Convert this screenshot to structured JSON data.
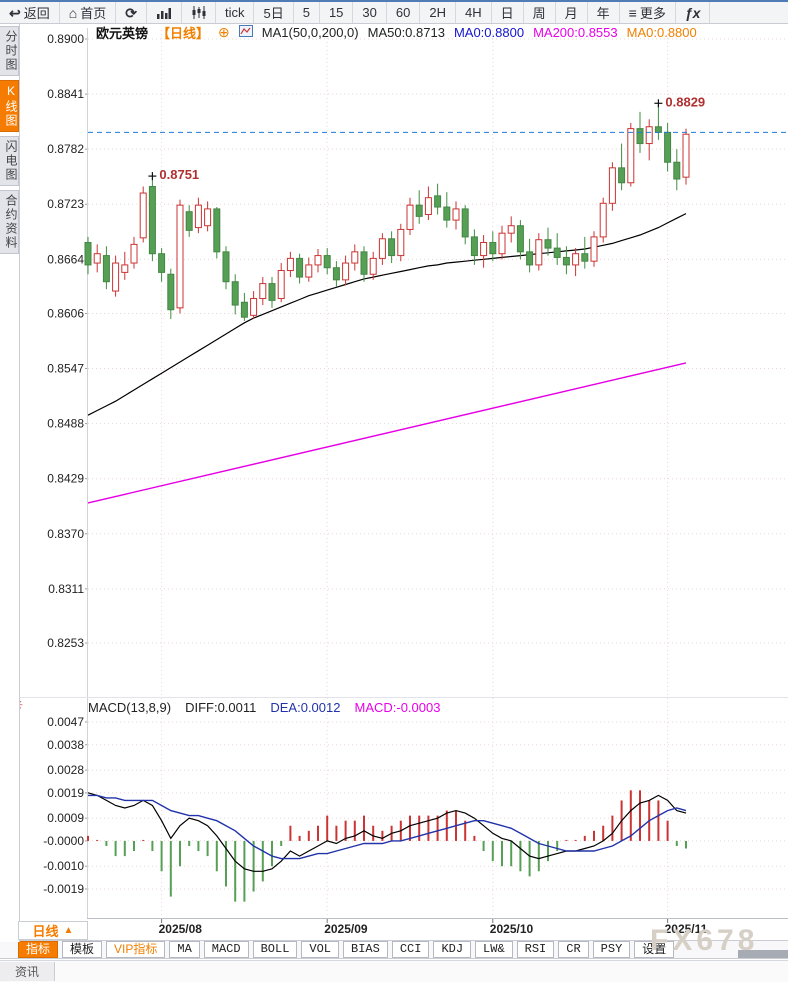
{
  "toolbar": {
    "items": [
      {
        "icon": "back",
        "label": "返回"
      },
      {
        "icon": "home",
        "label": "首页"
      },
      {
        "icon": "refresh",
        "label": ""
      },
      {
        "icon": "bar-chart",
        "label": ""
      },
      {
        "icon": "candlestick",
        "label": ""
      },
      {
        "icon": "",
        "label": "tick"
      },
      {
        "icon": "",
        "label": "5日"
      },
      {
        "icon": "",
        "label": "5"
      },
      {
        "icon": "",
        "label": "15"
      },
      {
        "icon": "",
        "label": "30"
      },
      {
        "icon": "",
        "label": "60"
      },
      {
        "icon": "",
        "label": "2H"
      },
      {
        "icon": "",
        "label": "4H"
      },
      {
        "icon": "",
        "label": "日"
      },
      {
        "icon": "",
        "label": "周"
      },
      {
        "icon": "",
        "label": "月"
      },
      {
        "icon": "",
        "label": "年"
      },
      {
        "icon": "menu",
        "label": "更多"
      },
      {
        "icon": "fx",
        "label": ""
      }
    ]
  },
  "sidebar": {
    "items": [
      {
        "label": "分时图",
        "active": false
      },
      {
        "label": "K线图",
        "active": true
      },
      {
        "label": "闪电图",
        "active": false
      },
      {
        "label": "合约资料",
        "active": false
      }
    ]
  },
  "chart_header": {
    "symbol": "欧元英镑",
    "period_tag": "【日线】",
    "plus": "⊕",
    "ma_param": "MA1(50,0,200,0)",
    "ma50": "MA50:0.8713",
    "ma0_blue": "MA0:0.8800",
    "ma200": "MA200:0.8553",
    "ma0_orange": "MA0:0.8800"
  },
  "macd_header": {
    "title": "MACD(13,8,9)",
    "diff": "DIFF:0.0011",
    "dea": "DEA:0.0012",
    "macd": "MACD:-0.0003"
  },
  "bottom": {
    "period_selector": "日线",
    "period_arrow": "▲",
    "tabs": [
      {
        "label": "指标",
        "style": "active"
      },
      {
        "label": "模板",
        "style": ""
      },
      {
        "label": "VIP指标",
        "style": "vip"
      },
      {
        "label": "MA",
        "style": "mono"
      },
      {
        "label": "MACD",
        "style": "mono"
      },
      {
        "label": "BOLL",
        "style": "mono"
      },
      {
        "label": "VOL",
        "style": "mono"
      },
      {
        "label": "BIAS",
        "style": "mono"
      },
      {
        "label": "CCI",
        "style": "mono"
      },
      {
        "label": "KDJ",
        "style": "mono"
      },
      {
        "label": "LW&",
        "style": "mono"
      },
      {
        "label": "RSI",
        "style": "mono"
      },
      {
        "label": "CR",
        "style": "mono"
      },
      {
        "label": "PSY",
        "style": "mono"
      },
      {
        "label": "设置",
        "style": ""
      }
    ],
    "news_tab": "资讯",
    "watermark": "FX678"
  },
  "colors": {
    "accent_orange": "#f57c00",
    "up_candle": "#cc3333",
    "down_candle": "#55a055",
    "ma50_line": "#000000",
    "ma200_line": "#e600e6",
    "diff_line": "#000000",
    "dea_line": "#2233aa",
    "dashed_price_line": "#1c7cd6",
    "annotation": "#b03030",
    "grid": "#e8d8d8"
  },
  "chart_data": {
    "type": "candlestick",
    "title": "欧元英镑 日线 (EUR/GBP daily with MA50/MA200 and MACD(13,8,9))",
    "price_axis_ticks": [
      "0.8900",
      "0.8841",
      "0.8782",
      "0.8723",
      "0.8664",
      "0.8606",
      "0.8547",
      "0.8488",
      "0.8429",
      "0.8370",
      "0.8311",
      "0.8253"
    ],
    "macd_axis_ticks": [
      "0.0047",
      "0.0038",
      "0.0028",
      "0.0019",
      "0.0009",
      "-0.0000",
      "-0.0010",
      "-0.0019"
    ],
    "x_ticks": [
      {
        "label": "2025/08",
        "index": 8
      },
      {
        "label": "2025/09",
        "index": 26
      },
      {
        "label": "2025/10",
        "index": 44
      },
      {
        "label": "2025/11",
        "index": 63
      }
    ],
    "price_range": {
      "top": 0.89,
      "bottom": 0.8253
    },
    "macd_range": {
      "top": 0.0047,
      "bottom": -0.0019
    },
    "current_price": 0.88,
    "annotations": [
      {
        "text": "0.8751",
        "index": 7,
        "price": 0.8751
      },
      {
        "text": "0.8829",
        "index": 62,
        "price": 0.8829
      }
    ],
    "candles": [
      [
        0.8682,
        0.8688,
        0.8648,
        0.8658
      ],
      [
        0.866,
        0.868,
        0.865,
        0.867
      ],
      [
        0.8668,
        0.8678,
        0.8632,
        0.864
      ],
      [
        0.863,
        0.8668,
        0.8624,
        0.866
      ],
      [
        0.865,
        0.8672,
        0.8642,
        0.8658
      ],
      [
        0.866,
        0.8688,
        0.8654,
        0.868
      ],
      [
        0.8687,
        0.8742,
        0.8682,
        0.8735
      ],
      [
        0.8742,
        0.8751,
        0.8662,
        0.867
      ],
      [
        0.867,
        0.8676,
        0.864,
        0.865
      ],
      [
        0.8648,
        0.8654,
        0.86,
        0.861
      ],
      [
        0.8612,
        0.8728,
        0.8606,
        0.8722
      ],
      [
        0.8715,
        0.8722,
        0.8688,
        0.8695
      ],
      [
        0.8698,
        0.873,
        0.8692,
        0.8722
      ],
      [
        0.87,
        0.8726,
        0.8694,
        0.8718
      ],
      [
        0.8718,
        0.872,
        0.8665,
        0.8672
      ],
      [
        0.8672,
        0.8678,
        0.8632,
        0.864
      ],
      [
        0.864,
        0.8648,
        0.8605,
        0.8615
      ],
      [
        0.8618,
        0.8628,
        0.8598,
        0.8602
      ],
      [
        0.8604,
        0.863,
        0.86,
        0.8622
      ],
      [
        0.8622,
        0.8645,
        0.8615,
        0.8638
      ],
      [
        0.8638,
        0.8645,
        0.8612,
        0.862
      ],
      [
        0.8622,
        0.866,
        0.8618,
        0.8652
      ],
      [
        0.8652,
        0.8672,
        0.8645,
        0.8665
      ],
      [
        0.8665,
        0.867,
        0.8638,
        0.8645
      ],
      [
        0.8645,
        0.8666,
        0.864,
        0.8658
      ],
      [
        0.8658,
        0.8675,
        0.865,
        0.8668
      ],
      [
        0.8668,
        0.8676,
        0.8648,
        0.8655
      ],
      [
        0.8655,
        0.8662,
        0.8635,
        0.8642
      ],
      [
        0.8642,
        0.8668,
        0.8636,
        0.866
      ],
      [
        0.866,
        0.868,
        0.8652,
        0.8672
      ],
      [
        0.8672,
        0.8678,
        0.864,
        0.8648
      ],
      [
        0.8648,
        0.8672,
        0.8642,
        0.8665
      ],
      [
        0.8665,
        0.8692,
        0.8658,
        0.8686
      ],
      [
        0.8686,
        0.8694,
        0.866,
        0.8668
      ],
      [
        0.8668,
        0.8702,
        0.8662,
        0.8696
      ],
      [
        0.8696,
        0.873,
        0.869,
        0.8722
      ],
      [
        0.8722,
        0.8738,
        0.8702,
        0.871
      ],
      [
        0.8712,
        0.8742,
        0.8706,
        0.873
      ],
      [
        0.8732,
        0.8745,
        0.8712,
        0.872
      ],
      [
        0.872,
        0.8736,
        0.8698,
        0.8706
      ],
      [
        0.8706,
        0.8726,
        0.8696,
        0.8718
      ],
      [
        0.8718,
        0.8722,
        0.868,
        0.8688
      ],
      [
        0.8688,
        0.8696,
        0.8658,
        0.8668
      ],
      [
        0.8668,
        0.869,
        0.8655,
        0.8682
      ],
      [
        0.8682,
        0.8694,
        0.8662,
        0.867
      ],
      [
        0.867,
        0.87,
        0.8664,
        0.8692
      ],
      [
        0.8692,
        0.871,
        0.8682,
        0.87
      ],
      [
        0.87,
        0.8706,
        0.8664,
        0.8672
      ],
      [
        0.8672,
        0.8686,
        0.865,
        0.8658
      ],
      [
        0.8658,
        0.8692,
        0.8652,
        0.8685
      ],
      [
        0.8685,
        0.8698,
        0.8668,
        0.8676
      ],
      [
        0.8676,
        0.8692,
        0.8658,
        0.8666
      ],
      [
        0.8666,
        0.8678,
        0.8648,
        0.8658
      ],
      [
        0.8658,
        0.8676,
        0.8646,
        0.867
      ],
      [
        0.867,
        0.8688,
        0.8654,
        0.8662
      ],
      [
        0.8662,
        0.8694,
        0.8656,
        0.8688
      ],
      [
        0.8688,
        0.873,
        0.8682,
        0.8724
      ],
      [
        0.8724,
        0.8768,
        0.8716,
        0.8762
      ],
      [
        0.8762,
        0.8788,
        0.8738,
        0.8746
      ],
      [
        0.8746,
        0.881,
        0.8742,
        0.8804
      ],
      [
        0.8804,
        0.8822,
        0.8778,
        0.8788
      ],
      [
        0.8788,
        0.8814,
        0.877,
        0.8806
      ],
      [
        0.8806,
        0.8829,
        0.8792,
        0.88
      ],
      [
        0.88,
        0.881,
        0.8758,
        0.8768
      ],
      [
        0.8768,
        0.8782,
        0.8738,
        0.875
      ],
      [
        0.8752,
        0.8804,
        0.8744,
        0.8798
      ]
    ],
    "ma50": [
      0.8497,
      0.8502,
      0.8507,
      0.8512,
      0.8518,
      0.8524,
      0.853,
      0.8536,
      0.8542,
      0.8548,
      0.8554,
      0.856,
      0.8566,
      0.8572,
      0.8578,
      0.8584,
      0.859,
      0.8596,
      0.8601,
      0.8605,
      0.8609,
      0.8613,
      0.8617,
      0.8621,
      0.8625,
      0.8628,
      0.8631,
      0.8634,
      0.8637,
      0.864,
      0.8643,
      0.8645,
      0.8647,
      0.8649,
      0.8651,
      0.8653,
      0.8655,
      0.8657,
      0.8658,
      0.866,
      0.8661,
      0.8662,
      0.8663,
      0.8664,
      0.8665,
      0.8666,
      0.8667,
      0.8668,
      0.8669,
      0.867,
      0.8671,
      0.8672,
      0.8673,
      0.8674,
      0.8675,
      0.8677,
      0.8679,
      0.8681,
      0.8684,
      0.8687,
      0.869,
      0.8694,
      0.8698,
      0.8703,
      0.8708,
      0.8713
    ],
    "ma200_line": {
      "start": 0.8403,
      "end": 0.8553
    },
    "macd": {
      "scale": 0.0001,
      "diff": [
        19,
        18,
        16,
        14,
        13,
        14,
        16,
        14,
        8,
        1,
        6,
        9,
        8,
        6,
        2,
        -3,
        -8,
        -11,
        -12,
        -12,
        -11,
        -8,
        -4,
        -6,
        -4,
        -2,
        0,
        -1,
        1,
        2,
        4,
        2,
        1,
        3,
        4,
        6,
        7,
        8,
        9,
        11,
        12,
        11,
        9,
        6,
        3,
        1,
        0,
        -3,
        -6,
        -7,
        -6,
        -5,
        -4,
        -4,
        -3,
        -2,
        0,
        3,
        8,
        12,
        15,
        16,
        18,
        16,
        12,
        11
      ],
      "dea": [
        18,
        18,
        17,
        17,
        16,
        16,
        16,
        16,
        14,
        12,
        11,
        10,
        10,
        9,
        8,
        6,
        4,
        1,
        -2,
        -4,
        -6,
        -7,
        -7,
        -7,
        -6,
        -5,
        -5,
        -4,
        -3,
        -2,
        -1,
        -1,
        -1,
        0,
        0,
        1,
        2,
        3,
        4,
        5,
        6,
        7,
        8,
        8,
        7,
        6,
        5,
        3,
        1,
        -1,
        -2,
        -3,
        -4,
        -4,
        -4,
        -4,
        -3,
        -2,
        0,
        2,
        5,
        8,
        10,
        12,
        13,
        12
      ],
      "hist": [
        2,
        0,
        -2,
        -6,
        -6,
        -4,
        0,
        -4,
        -12,
        -22,
        -10,
        -2,
        -4,
        -6,
        -12,
        -18,
        -24,
        -24,
        -20,
        -16,
        -10,
        -2,
        6,
        2,
        4,
        6,
        10,
        6,
        8,
        8,
        10,
        6,
        4,
        6,
        8,
        10,
        10,
        10,
        10,
        12,
        12,
        8,
        2,
        -4,
        -8,
        -10,
        -10,
        -12,
        -14,
        -12,
        -8,
        -4,
        0,
        0,
        2,
        4,
        6,
        10,
        16,
        20,
        20,
        16,
        16,
        8,
        -2,
        -3
      ]
    }
  }
}
